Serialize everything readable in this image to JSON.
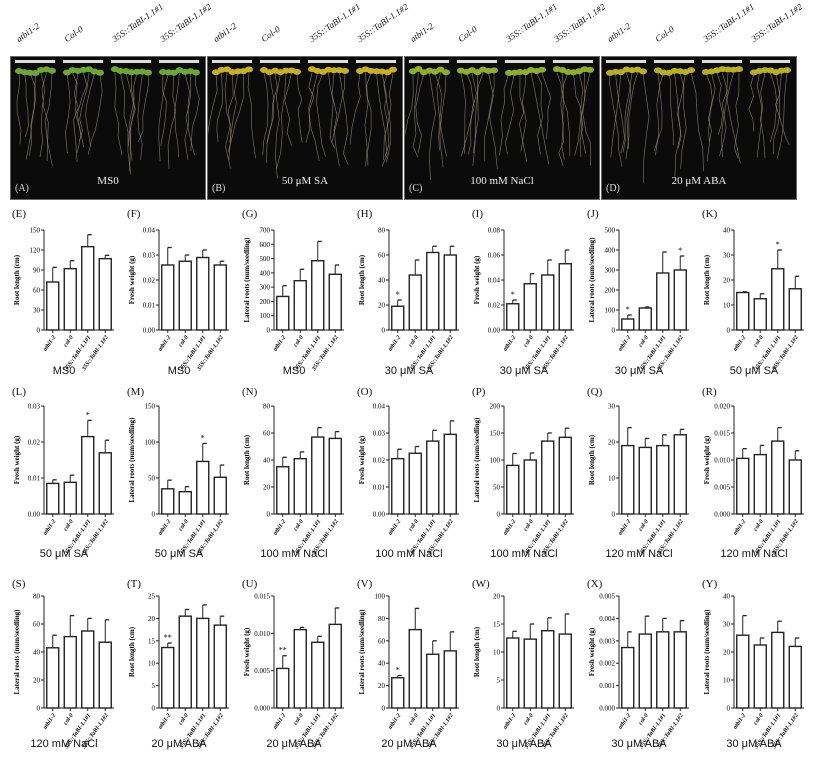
{
  "genotypes": [
    "atbi1-2",
    "Col-0",
    "35S::TaBI-1.1#1",
    "35S::TaBI-1.1#2"
  ],
  "photos": [
    {
      "label": "(A)",
      "condition": "MS0",
      "leaf": "#6aa832"
    },
    {
      "label": "(B)",
      "condition": "50 μM SA",
      "leaf": "#c8b020"
    },
    {
      "label": "(C)",
      "condition": "100 mM NaCl",
      "leaf": "#8fae2a"
    },
    {
      "label": "(D)",
      "condition": "20 μM ABA",
      "leaf": "#b8b020"
    }
  ],
  "chart_data": [
    {
      "type": "bar",
      "label": "(E)",
      "condition": "MS0",
      "ylabel": "Root length (cm)",
      "categories": [
        "atbi1-2",
        "col-0",
        "35S::TaBI-1.1#1",
        "35S::TaBI-1.1#2"
      ],
      "ylim": [
        0,
        150
      ],
      "yticks": [
        "0",
        "30",
        "60",
        "90",
        "120",
        "150"
      ],
      "values": [
        72,
        92,
        125,
        107
      ],
      "errors": [
        22,
        12,
        18,
        5
      ],
      "marks": [
        "",
        "",
        "",
        ""
      ]
    },
    {
      "type": "bar",
      "label": "(F)",
      "condition": "MS0",
      "ylabel": "Fresh weight (g)",
      "categories": [
        "atbi1-2",
        "col-0",
        "35S::TaBI-1.1#1",
        "35S::TaBI-1.1#2"
      ],
      "ylim": [
        0,
        0.04
      ],
      "yticks": [
        "0.00",
        "0.01",
        "0.02",
        "0.03",
        "0.04"
      ],
      "values": [
        0.026,
        0.0275,
        0.029,
        0.026
      ],
      "errors": [
        0.007,
        0.0025,
        0.003,
        0.0015
      ],
      "marks": [
        "",
        "",
        "",
        ""
      ]
    },
    {
      "type": "bar",
      "label": "(G)",
      "condition": "MS0",
      "ylabel": "Lateral roots (num/seedling)",
      "categories": [
        "atbi1-2",
        "col-0",
        "35S::TaBI-1.1#1",
        "35S::TaBI-1.1#2"
      ],
      "ylim": [
        0,
        700
      ],
      "yticks": [
        "0",
        "100",
        "200",
        "300",
        "400",
        "500",
        "600",
        "700"
      ],
      "values": [
        235,
        345,
        485,
        390
      ],
      "errors": [
        75,
        80,
        135,
        65
      ],
      "marks": [
        "",
        "",
        "",
        ""
      ]
    },
    {
      "type": "bar",
      "label": "(H)",
      "condition": "30 μM SA",
      "ylabel": "Root length (cm)",
      "categories": [
        "atbi1-2",
        "col-0",
        "35S::TaBI-1.1#1",
        "35S::TaBI-1.1#2"
      ],
      "ylim": [
        0,
        80
      ],
      "yticks": [
        "0",
        "20",
        "40",
        "60",
        "80"
      ],
      "values": [
        19,
        44,
        62,
        60
      ],
      "errors": [
        5,
        12,
        5,
        7
      ],
      "marks": [
        "*",
        "",
        "",
        ""
      ]
    },
    {
      "type": "bar",
      "label": "(I)",
      "condition": "30 μM SA",
      "ylabel": "Fresh weight (g)",
      "categories": [
        "atbi1-2",
        "col-0",
        "35S::TaBI-1.1#1",
        "35S::TaBI-1.1#2"
      ],
      "ylim": [
        0,
        0.08
      ],
      "yticks": [
        "0.00",
        "0.02",
        "0.04",
        "0.06",
        "0.08"
      ],
      "values": [
        0.021,
        0.037,
        0.044,
        0.053
      ],
      "errors": [
        0.003,
        0.008,
        0.012,
        0.011
      ],
      "marks": [
        "*",
        "",
        "",
        ""
      ]
    },
    {
      "type": "bar",
      "label": "(J)",
      "condition": "30 μM SA",
      "ylabel": "Lateral roots (num/seedling)",
      "categories": [
        "atbi1-2",
        "col-0",
        "35S::TaBI-1.1#1",
        "35S::TaBI-1.1#2"
      ],
      "ylim": [
        0,
        500
      ],
      "yticks": [
        "0",
        "100",
        "200",
        "300",
        "400",
        "500"
      ],
      "values": [
        55,
        110,
        285,
        300
      ],
      "errors": [
        20,
        5,
        105,
        70
      ],
      "marks": [
        "*",
        "",
        "",
        "*"
      ]
    },
    {
      "type": "bar",
      "label": "(K)",
      "condition": "50 μM SA",
      "ylabel": "Root length (cm)",
      "categories": [
        "atbi1-2",
        "col-0",
        "35S::TaBI-1.1#1",
        "35S::TaBI-1.1#2"
      ],
      "ylim": [
        0,
        40
      ],
      "yticks": [
        "0",
        "10",
        "20",
        "30",
        "40"
      ],
      "values": [
        15,
        12.5,
        24.5,
        16.5
      ],
      "errors": [
        0.3,
        2,
        7.5,
        5
      ],
      "marks": [
        "",
        "",
        "*",
        ""
      ]
    },
    {
      "type": "bar",
      "label": "(L)",
      "condition": "50 μM SA",
      "ylabel": "Fresh weight (g)",
      "categories": [
        "atbi1-2",
        "col-0",
        "35S::TaBI-1.1#1",
        "35S::TaBI-1.1#2"
      ],
      "ylim": [
        0,
        0.03
      ],
      "yticks": [
        "0.00",
        "0.01",
        "0.02",
        "0.03"
      ],
      "values": [
        0.0085,
        0.0088,
        0.0215,
        0.017
      ],
      "errors": [
        0.001,
        0.002,
        0.0045,
        0.0035
      ],
      "marks": [
        "",
        "",
        "*",
        ""
      ]
    },
    {
      "type": "bar",
      "label": "(M)",
      "condition": "50 μM SA",
      "ylabel": "Lateral roots (num/seedling)",
      "categories": [
        "atbi1-2",
        "col-0",
        "35S::TaBI-1.1#1",
        "35S::TaBI-1.1#2"
      ],
      "ylim": [
        0,
        150
      ],
      "yticks": [
        "0",
        "50",
        "100",
        "150"
      ],
      "values": [
        35,
        31,
        73,
        51
      ],
      "errors": [
        12,
        7,
        25,
        17
      ],
      "marks": [
        "",
        "",
        "*",
        ""
      ]
    },
    {
      "type": "bar",
      "label": "(N)",
      "condition": "100 mM NaCl",
      "ylabel": "Root length (cm)",
      "categories": [
        "atbi1-2",
        "col-0",
        "35S::TaBI-1.1#1",
        "35S::TaBI-1.1#2"
      ],
      "ylim": [
        0,
        80
      ],
      "yticks": [
        "0",
        "20",
        "40",
        "60",
        "80"
      ],
      "values": [
        35,
        41,
        57,
        56
      ],
      "errors": [
        7,
        5,
        7,
        5
      ],
      "marks": [
        "",
        "",
        "",
        ""
      ]
    },
    {
      "type": "bar",
      "label": "(O)",
      "condition": "100 mM NaCl",
      "ylabel": "Fresh weight (g)",
      "categories": [
        "atbi1-2",
        "col-0",
        "35S::TaBI-1.1#1",
        "35S::TaBI-1.1#2"
      ],
      "ylim": [
        0,
        0.04
      ],
      "yticks": [
        "0.00",
        "0.01",
        "0.02",
        "0.03",
        "0.04"
      ],
      "values": [
        0.0205,
        0.0225,
        0.027,
        0.0295
      ],
      "errors": [
        0.0035,
        0.0025,
        0.004,
        0.005
      ],
      "marks": [
        "",
        "",
        "",
        ""
      ]
    },
    {
      "type": "bar",
      "label": "(P)",
      "condition": "100 mM NaCl",
      "ylabel": "Lateral roots (num/seedling)",
      "categories": [
        "atbi1-2",
        "col-0",
        "35S::TaBI-1.1#1",
        "35S::TaBI-1.1#2"
      ],
      "ylim": [
        0,
        200
      ],
      "yticks": [
        "0",
        "50",
        "100",
        "150",
        "200"
      ],
      "values": [
        90,
        100,
        135,
        142
      ],
      "errors": [
        22,
        13,
        15,
        17
      ],
      "marks": [
        "",
        "",
        "",
        ""
      ]
    },
    {
      "type": "bar",
      "label": "(Q)",
      "condition": "120 mM NaCl",
      "ylabel": "Root length (cm)",
      "categories": [
        "atbi1-2",
        "col-0",
        "35S::TaBI-1.1#1",
        "35S::TaBI-1.1#2"
      ],
      "ylim": [
        0,
        30
      ],
      "yticks": [
        "0",
        "10",
        "20",
        "30"
      ],
      "values": [
        19,
        18.5,
        19,
        22
      ],
      "errors": [
        5,
        2.5,
        3,
        1.5
      ],
      "marks": [
        "",
        "",
        "",
        ""
      ]
    },
    {
      "type": "bar",
      "label": "(R)",
      "condition": "120 mM NaCl",
      "ylabel": "Fresh weight (g)",
      "categories": [
        "atbi1-2",
        "col-0",
        "35S::TaBI-1.1#1",
        "35S::TaBI-1.1#2"
      ],
      "ylim": [
        0,
        0.02
      ],
      "yticks": [
        "0.000",
        "0.005",
        "0.010",
        "0.015",
        "0.020"
      ],
      "values": [
        0.0103,
        0.011,
        0.0135,
        0.01
      ],
      "errors": [
        0.0018,
        0.0017,
        0.0025,
        0.0017
      ],
      "marks": [
        "",
        "",
        "",
        ""
      ]
    },
    {
      "type": "bar",
      "label": "(S)",
      "condition": "120 mM NaCl",
      "ylabel": "Lateral roots (num/seedling)",
      "categories": [
        "atbi1-2",
        "col-0",
        "35S::TaBI-1.1#1",
        "35S::TaBI-1.1#2"
      ],
      "ylim": [
        0,
        80
      ],
      "yticks": [
        "0",
        "20",
        "40",
        "60",
        "80"
      ],
      "values": [
        43,
        51,
        55,
        47
      ],
      "errors": [
        9,
        15,
        9,
        16
      ],
      "marks": [
        "",
        "",
        "",
        ""
      ]
    },
    {
      "type": "bar",
      "label": "(T)",
      "condition": "20 μM ABA",
      "ylabel": "Root length (cm)",
      "categories": [
        "atbi1-2",
        "col-0",
        "35S::TaBI-1.1#1",
        "35S::TaBI-1.1#2"
      ],
      "ylim": [
        0,
        25
      ],
      "yticks": [
        "0",
        "5",
        "10",
        "15",
        "20",
        "25"
      ],
      "values": [
        13.5,
        20.5,
        20,
        18.5
      ],
      "errors": [
        1,
        1.5,
        3,
        2
      ],
      "marks": [
        "**",
        "",
        "",
        ""
      ]
    },
    {
      "type": "bar",
      "label": "(U)",
      "condition": "20 μM ABA",
      "ylabel": "Fresh weight (g)",
      "categories": [
        "atbi1-2",
        "col-0",
        "35S::TaBI-1.1#1",
        "35S::TaBI-1.1#2"
      ],
      "ylim": [
        0,
        0.015
      ],
      "yticks": [
        "0.000",
        "0.005",
        "0.010",
        "0.015"
      ],
      "values": [
        0.0053,
        0.0105,
        0.0088,
        0.0112
      ],
      "errors": [
        0.0017,
        0.0003,
        0.0008,
        0.0022
      ],
      "marks": [
        "**",
        "",
        "",
        ""
      ]
    },
    {
      "type": "bar",
      "label": "(V)",
      "condition": "20 μM ABA",
      "ylabel": "Lateral roots (num/seedling)",
      "categories": [
        "atbi1-2",
        "col-0",
        "35S::TaBI-1.1#1",
        "35S::TaBI-1.1#2"
      ],
      "ylim": [
        0,
        100
      ],
      "yticks": [
        "0",
        "20",
        "40",
        "60",
        "80",
        "100"
      ],
      "values": [
        27,
        70,
        48,
        51
      ],
      "errors": [
        2,
        19,
        12,
        17
      ],
      "marks": [
        "*",
        "",
        "",
        ""
      ]
    },
    {
      "type": "bar",
      "label": "(W)",
      "condition": "30 μM ABA",
      "ylabel": "Root length (cm)",
      "categories": [
        "atbi1-2",
        "col-0",
        "35S::TaBI-1.1#1",
        "35S::TaBI-1.1#2"
      ],
      "ylim": [
        0,
        20
      ],
      "yticks": [
        "0",
        "5",
        "10",
        "15",
        "20"
      ],
      "values": [
        12.5,
        12.3,
        13.8,
        13.2
      ],
      "errors": [
        1.2,
        2.7,
        2.3,
        3.6
      ],
      "marks": [
        "",
        "",
        "",
        ""
      ]
    },
    {
      "type": "bar",
      "label": "(X)",
      "condition": "30 μM ABA",
      "ylabel": "Fresh weight (g)",
      "categories": [
        "atbi1-2",
        "col-0",
        "35S::TaBI-1.1#1",
        "35S::TaBI-1.1#2"
      ],
      "ylim": [
        0,
        0.005
      ],
      "yticks": [
        "0.000",
        "0.001",
        "0.002",
        "0.003",
        "0.004",
        "0.005"
      ],
      "values": [
        0.0027,
        0.0033,
        0.0034,
        0.0034
      ],
      "errors": [
        0.0007,
        0.0008,
        0.0006,
        0.0005
      ],
      "marks": [
        "",
        "",
        "",
        ""
      ]
    },
    {
      "type": "bar",
      "label": "(Y)",
      "condition": "30 μM ABA",
      "ylabel": "Lateral roots (num/seedling)",
      "categories": [
        "atbi1-2",
        "col-0",
        "35S::TaBI-1.1#1",
        "35S::TaBI-1.1#2"
      ],
      "ylim": [
        0,
        40
      ],
      "yticks": [
        "0",
        "10",
        "20",
        "30",
        "40"
      ],
      "values": [
        26,
        22.5,
        27,
        22
      ],
      "errors": [
        7,
        2.5,
        4,
        3
      ],
      "marks": [
        "",
        "",
        "",
        ""
      ]
    }
  ]
}
